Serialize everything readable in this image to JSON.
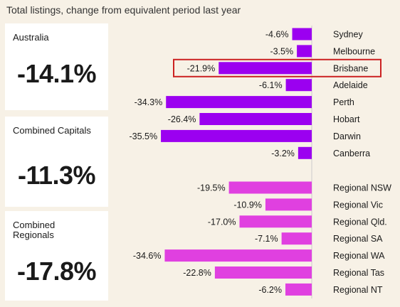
{
  "title": "Total listings, change from equivalent period last year",
  "summary_cards": [
    {
      "label": "Australia",
      "value": "-14.1%"
    },
    {
      "label": "Combined Capitals",
      "value": "-11.3%"
    },
    {
      "label": "Combined Regionals",
      "value": "-17.8%"
    }
  ],
  "colors": {
    "capital": "#9b00f0",
    "regional": "#e040e0",
    "highlight": "#cc2222",
    "background": "#f7f1e6"
  },
  "chart_data": {
    "type": "bar",
    "orientation": "horizontal",
    "categories": [
      "Sydney",
      "Melbourne",
      "Brisbane",
      "Adelaide",
      "Perth",
      "Hobart",
      "Darwin",
      "Canberra",
      "Regional NSW",
      "Regional Vic",
      "Regional Qld.",
      "Regional SA",
      "Regional WA",
      "Regional Tas",
      "Regional NT"
    ],
    "values": [
      -4.6,
      -3.5,
      -21.9,
      -6.1,
      -34.3,
      -26.4,
      -35.5,
      -3.2,
      -19.5,
      -10.9,
      -17.0,
      -7.1,
      -34.6,
      -22.8,
      -6.2
    ],
    "value_labels": [
      "-4.6%",
      "-3.5%",
      "-21.9%",
      "-6.1%",
      "-34.3%",
      "-26.4%",
      "-35.5%",
      "-3.2%",
      "-19.5%",
      "-10.9%",
      "-17.0%",
      "-7.1%",
      "-34.6%",
      "-22.8%",
      "-6.2%"
    ],
    "groups": [
      "capital",
      "capital",
      "capital",
      "capital",
      "capital",
      "capital",
      "capital",
      "capital",
      "regional",
      "regional",
      "regional",
      "regional",
      "regional",
      "regional",
      "regional"
    ],
    "highlighted": "Brisbane",
    "xlim": [
      -40,
      0
    ],
    "grid": false,
    "legend": "none"
  }
}
